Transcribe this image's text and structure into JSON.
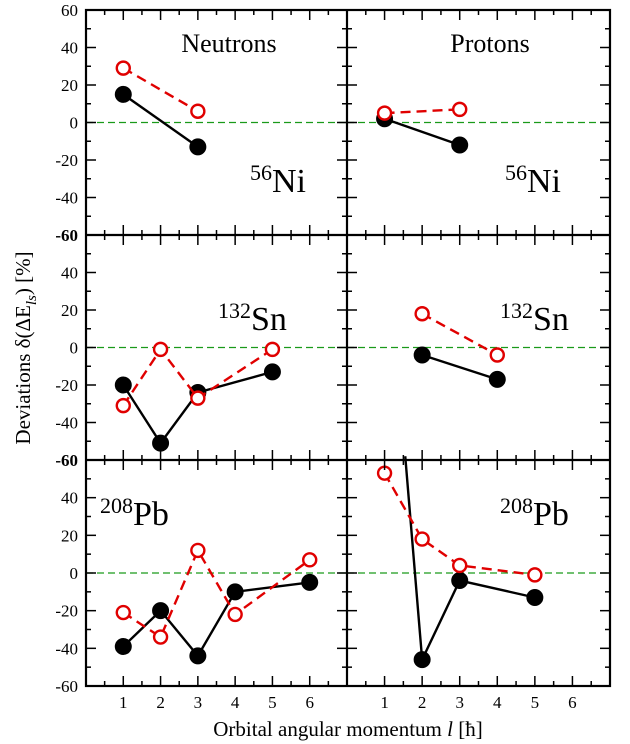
{
  "chart_data": {
    "type": "line",
    "xlabel": {
      "text": "Orbital angular momentum ",
      "var": "l",
      "unit": " [ħ]"
    },
    "ylabel": {
      "pre": "Deviations  δ(ΔE",
      "sub": "ls",
      "post": ")  [%]"
    },
    "xlim": [
      0,
      7
    ],
    "ylim": [
      -60,
      60
    ],
    "xticks": [
      1,
      2,
      3,
      4,
      5,
      6
    ],
    "yticks": [
      -60,
      -40,
      -20,
      0,
      20,
      40,
      60
    ],
    "series_colors": {
      "black": "#000000",
      "red": "#e00000",
      "zero_line": "#1a9a1a"
    },
    "panels": [
      {
        "row": 0,
        "col": 0,
        "title": "Neutrons",
        "nucleus": {
          "mass": "56",
          "symbol": "Ni"
        },
        "series": [
          {
            "style": "black-solid-filled",
            "x": [
              1,
              3
            ],
            "y": [
              15,
              -13
            ]
          },
          {
            "style": "red-dashed-open",
            "x": [
              1,
              3
            ],
            "y": [
              29,
              6
            ]
          }
        ]
      },
      {
        "row": 0,
        "col": 1,
        "title": "Protons",
        "nucleus": {
          "mass": "56",
          "symbol": "Ni"
        },
        "series": [
          {
            "style": "black-solid-filled",
            "x": [
              1,
              3
            ],
            "y": [
              2,
              -12
            ]
          },
          {
            "style": "red-dashed-open",
            "x": [
              1,
              3
            ],
            "y": [
              5,
              7
            ]
          }
        ]
      },
      {
        "row": 1,
        "col": 0,
        "title": "",
        "nucleus": {
          "mass": "132",
          "symbol": "Sn"
        },
        "series": [
          {
            "style": "black-solid-filled",
            "x": [
              1,
              2,
              3,
              5
            ],
            "y": [
              -20,
              -51,
              -24,
              -13
            ]
          },
          {
            "style": "red-dashed-open",
            "x": [
              1,
              2,
              3,
              5
            ],
            "y": [
              -31,
              -1,
              -27,
              -1
            ]
          }
        ]
      },
      {
        "row": 1,
        "col": 1,
        "title": "",
        "nucleus": {
          "mass": "132",
          "symbol": "Sn"
        },
        "series": [
          {
            "style": "black-solid-filled",
            "x": [
              2,
              4
            ],
            "y": [
              -4,
              -17
            ]
          },
          {
            "style": "red-dashed-open",
            "x": [
              2,
              4
            ],
            "y": [
              18,
              -4
            ]
          }
        ]
      },
      {
        "row": 2,
        "col": 0,
        "title": "",
        "nucleus": {
          "mass": "208",
          "symbol": "Pb"
        },
        "series": [
          {
            "style": "black-solid-filled",
            "x": [
              1,
              2,
              3,
              4,
              6
            ],
            "y": [
              -39,
              -20,
              -44,
              -10,
              -5
            ]
          },
          {
            "style": "red-dashed-open",
            "x": [
              1,
              2,
              3,
              4,
              6
            ],
            "y": [
              -21,
              -34,
              12,
              -22,
              7
            ]
          }
        ]
      },
      {
        "row": 2,
        "col": 1,
        "title": "",
        "nucleus": {
          "mass": "208",
          "symbol": "Pb"
        },
        "series": [
          {
            "style": "black-solid-filled",
            "x": [
              1.55,
              2,
              3,
              5
            ],
            "y": [
              62,
              -46,
              -4,
              -13
            ]
          },
          {
            "style": "red-dashed-open",
            "x": [
              1,
              2,
              3,
              5
            ],
            "y": [
              53,
              18,
              4,
              -1
            ]
          }
        ]
      }
    ]
  }
}
